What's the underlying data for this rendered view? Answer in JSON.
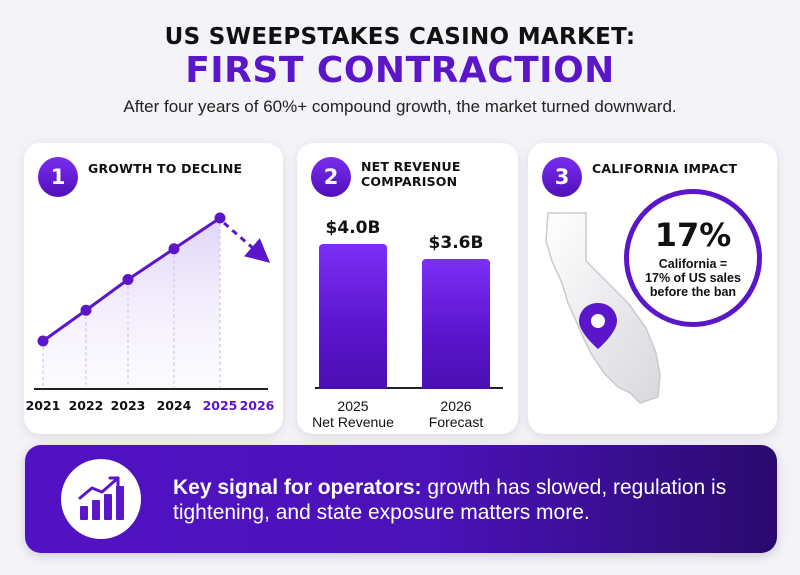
{
  "header": {
    "title_top": "US SWEEPSTAKES CASINO MARKET:",
    "title_main": "FIRST CONTRACTION",
    "subtitle": "After four years of 60%+ compound growth, the market turned downward."
  },
  "panels": [
    {
      "number": "1",
      "title": "GROWTH TO DECLINE"
    },
    {
      "number": "2",
      "title_line1": "NET REVENUE",
      "title_line2": "COMPARISON"
    },
    {
      "number": "3",
      "title": "CALIFORNIA IMPACT"
    }
  ],
  "chart_data": [
    {
      "type": "line",
      "x": [
        "2021",
        "2022",
        "2023",
        "2024",
        "2025",
        "2026"
      ],
      "series": [
        {
          "values": [
            1,
            2,
            3,
            4,
            5,
            null
          ],
          "style": "solid"
        },
        {
          "values": [
            null,
            null,
            null,
            null,
            5,
            3.6
          ],
          "style": "dashed"
        }
      ],
      "highlight_ticks": [
        "2025",
        "2026"
      ],
      "grid": false
    },
    {
      "type": "bar",
      "categories": [
        "2025 Net Revenue",
        "2026 Forecast"
      ],
      "category_lines": [
        [
          "2025",
          "Net Revenue"
        ],
        [
          "2026",
          "Forecast"
        ]
      ],
      "values": [
        4.0,
        3.6
      ],
      "data_labels": [
        "$4.0B",
        "$3.6B"
      ]
    }
  ],
  "california": {
    "stat_value": "17%",
    "caption_lines": [
      "California =",
      "17% of US sales",
      "before the ban"
    ],
    "map_icon": "location-pin-icon"
  },
  "footer": {
    "icon": "rising-bar-chart-icon",
    "bold_text": "Key signal for operators:",
    "rest_text": " growth has slowed, regulation is tightening, and state exposure matters more."
  },
  "colors": {
    "accent": "#5b16c9",
    "background": "#f4f3f7",
    "footer_start": "#5212c4",
    "footer_end": "#2a0a6e"
  }
}
